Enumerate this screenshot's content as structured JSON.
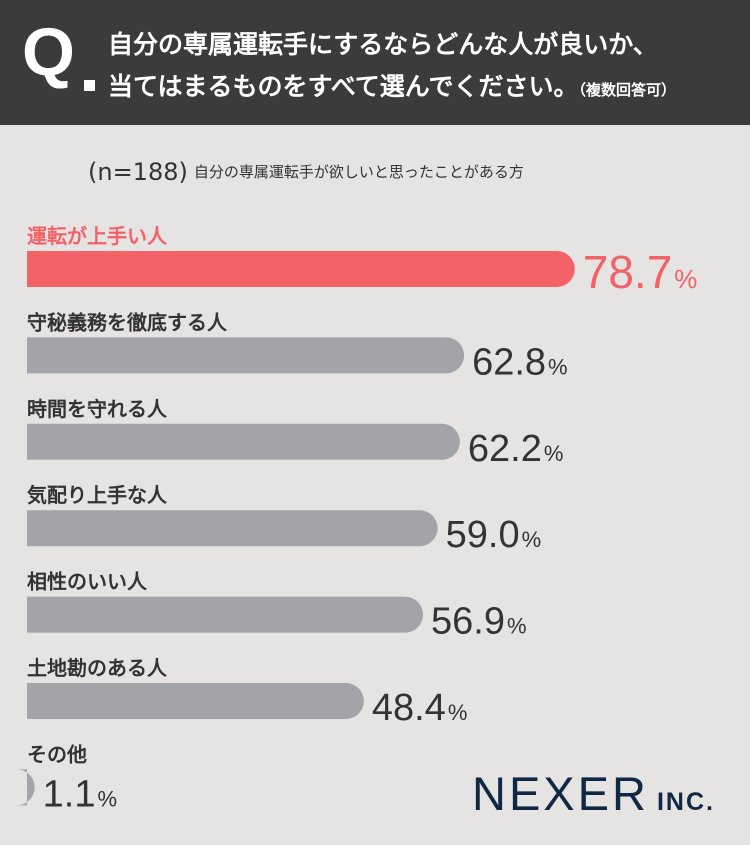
{
  "question": {
    "mark": "Q",
    "line1": "自分の専属運転手にするならどんな人が良いか、",
    "line2": "当てはまるものをすべて選んでください。",
    "note": "（複数回答可）"
  },
  "subtitle": {
    "sample_size": "(n=188)",
    "text": "自分の専属運転手が欲しいと思ったことがある方"
  },
  "logo": {
    "name": "NEXER",
    "suffix": "INC."
  },
  "colors": {
    "highlight": "#f26266",
    "bar": "#a3a4a8",
    "text": "#333333",
    "header_bg": "#3b3b3b",
    "page_bg": "#e6e3e3"
  },
  "chart_data": {
    "type": "bar",
    "orientation": "horizontal",
    "title": "",
    "unit": "%",
    "categories": [
      "運転が上手い人",
      "守秘義務を徹底する人",
      "時間を守れる人",
      "気配り上手な人",
      "相性のいい人",
      "土地勘のある人",
      "その他"
    ],
    "values": [
      78.7,
      62.8,
      62.2,
      59.0,
      56.9,
      48.4,
      1.1
    ],
    "value_labels": [
      "78.7",
      "62.8",
      "62.2",
      "59.0",
      "56.9",
      "48.4",
      "1.1"
    ],
    "highlight_index": 0,
    "grid": false,
    "legend": "none"
  }
}
